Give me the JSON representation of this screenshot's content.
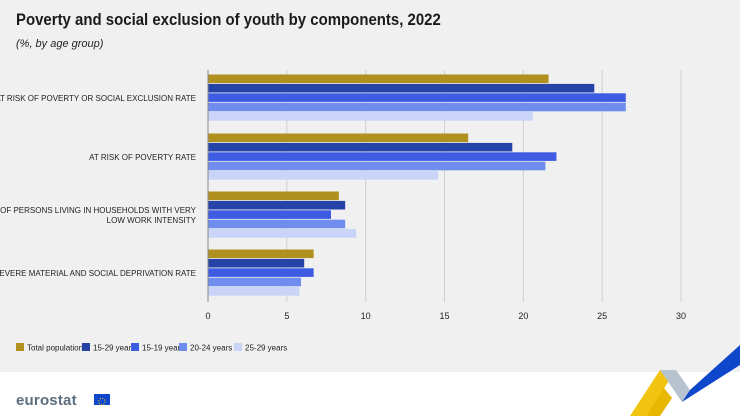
{
  "title": "Poverty and social exclusion of youth by components, 2022",
  "subtitle": "(%, by age group)",
  "logo_text": "eurostat",
  "chart_data": {
    "type": "bar",
    "orientation": "horizontal",
    "categories": [
      "AT RISK OF POVERTY OR SOCIAL EXCLUSION RATE",
      "AT RISK OF POVERTY RATE",
      "SHARE OF PERSONS LIVING IN HOUSEHOLDS  WITH  VERY LOW WORK INTENSITY",
      "SEVERE MATERIAL AND SOCIAL DEPRIVATION RATE"
    ],
    "category_lines": [
      [
        "AT RISK OF POVERTY OR SOCIAL EXCLUSION RATE"
      ],
      [
        "AT RISK OF POVERTY RATE"
      ],
      [
        "SHARE OF PERSONS LIVING IN HOUSEHOLDS  WITH  VERY",
        "LOW WORK INTENSITY"
      ],
      [
        "SEVERE MATERIAL AND SOCIAL DEPRIVATION RATE"
      ]
    ],
    "series": [
      {
        "name": "Total population",
        "color": "#b09120",
        "values": [
          21.6,
          16.5,
          8.3,
          6.7
        ]
      },
      {
        "name": "15-29 years",
        "color": "#2644a7",
        "values": [
          24.5,
          19.3,
          8.7,
          6.1
        ]
      },
      {
        "name": "15-19 years",
        "color": "#3e5ce1",
        "values": [
          26.5,
          22.1,
          7.8,
          6.7
        ]
      },
      {
        "name": "20-24 years",
        "color": "#6e8dee",
        "values": [
          26.5,
          21.4,
          8.7,
          5.9
        ]
      },
      {
        "name": "25-29 years",
        "color": "#c9d4f8",
        "values": [
          20.6,
          14.6,
          9.4,
          5.8
        ]
      }
    ],
    "xlim": [
      0,
      30
    ],
    "xticks": [
      0,
      5,
      10,
      15,
      20,
      25,
      30
    ],
    "grid": true,
    "legend_position": "bottom-left"
  }
}
